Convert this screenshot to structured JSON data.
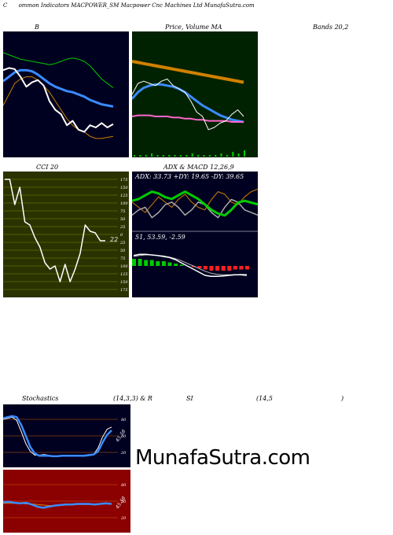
{
  "header": {
    "title_c": "C",
    "title_rest": "ommon  Indicators MACPOWER_SM Macpower Cnc Machines Ltd MunafaSutra.com"
  },
  "labels": {
    "b": "B",
    "price_volume": "Price,  Volume  MA",
    "bands": "Bands 20,2",
    "cci": "CCI 20",
    "adx_macd": "ADX  & MACD 12,26,9",
    "adx_values": "ADX: 33.73  +DY: 19.65 -DY: 39.65",
    "macd_values": "51,  53.59,  -2.59",
    "stochastics": "Stochastics",
    "stoch_params": "(14,3,3) & R",
    "rsi": "SI",
    "rsi_params": "(14,5",
    "rsi_close": ")",
    "stoch_marker": "45.58",
    "rsi_marker": "45.58",
    "cci_value": "22"
  },
  "watermark": "MunafaSutra.com",
  "colors": {
    "dark_bg": "#000020",
    "green_bg": "#002200",
    "olive_bg": "#2a3300",
    "red_bg": "#8b0000",
    "white": "#ffffff",
    "blue": "#3a8bff",
    "orange": "#d08000",
    "green": "#00cc00",
    "pink": "#ff66cc"
  },
  "chart_data": [
    {
      "type": "line",
      "title": "B",
      "series": [
        {
          "name": "close",
          "values": [
            72,
            74,
            73,
            66,
            57,
            61,
            63,
            58,
            44,
            36,
            32,
            22,
            26,
            18,
            16,
            22,
            20,
            24,
            20,
            23
          ]
        },
        {
          "name": "mid",
          "values": [
            62,
            66,
            70,
            72,
            72,
            71,
            68,
            64,
            60,
            57,
            55,
            53,
            52,
            50,
            48,
            45,
            43,
            41,
            40,
            39
          ]
        },
        {
          "name": "upper",
          "values": [
            88,
            86,
            84,
            82,
            81,
            80,
            79,
            78,
            77,
            78,
            80,
            82,
            83,
            82,
            80,
            76,
            70,
            64,
            60,
            56
          ]
        },
        {
          "name": "lower",
          "values": [
            40,
            50,
            60,
            64,
            66,
            66,
            63,
            58,
            52,
            44,
            36,
            28,
            22,
            18,
            16,
            12,
            10,
            10,
            11,
            12
          ]
        }
      ],
      "ylim": [
        0,
        100
      ]
    },
    {
      "type": "line",
      "title": "Price,  Volume  MA",
      "series": [
        {
          "name": "ma_long",
          "values": [
            80,
            79,
            78,
            77,
            76,
            75,
            74,
            73,
            72,
            71,
            70,
            69,
            68,
            67,
            66,
            65,
            64,
            63,
            62,
            61
          ]
        },
        {
          "name": "ma_mid",
          "values": [
            46,
            52,
            56,
            58,
            59,
            59,
            58,
            57,
            55,
            52,
            48,
            44,
            40,
            37,
            34,
            31,
            29,
            27,
            26,
            25
          ]
        },
        {
          "name": "ma_short",
          "values": [
            30,
            31,
            31,
            31,
            30,
            30,
            30,
            29,
            29,
            28,
            28,
            27,
            27,
            26,
            26,
            26,
            26,
            25,
            25,
            25
          ]
        },
        {
          "name": "price",
          "values": [
            50,
            60,
            62,
            60,
            58,
            62,
            64,
            58,
            55,
            52,
            44,
            34,
            30,
            18,
            20,
            24,
            26,
            32,
            36,
            30
          ]
        }
      ],
      "volume": [
        1,
        1,
        1,
        2,
        1,
        1,
        1,
        1,
        1,
        1,
        2,
        1,
        1,
        1,
        1,
        2,
        1,
        3,
        2,
        4
      ],
      "ylim": [
        0,
        100
      ]
    },
    {
      "type": "line",
      "title": "CCI 20",
      "series": [
        {
          "name": "cci",
          "values": [
            175,
            175,
            95,
            150,
            40,
            30,
            -10,
            -40,
            -90,
            -110,
            -100,
            -150,
            -95,
            -150,
            -110,
            -60,
            30,
            10,
            5,
            -20,
            -20
          ]
        }
      ],
      "ticks": [
        175,
        150,
        125,
        100,
        75,
        50,
        25,
        0,
        -25,
        -50,
        -75,
        -100,
        -125,
        -150,
        -175
      ],
      "tick_labels": [
        "175",
        "150",
        "125",
        "100",
        "75",
        "50",
        "25",
        "0",
        "25",
        "50",
        "75",
        "100",
        "125",
        "150",
        "175"
      ],
      "ylim": [
        -175,
        175
      ]
    },
    {
      "type": "line",
      "title": "ADX  & MACD 12,26,9",
      "series": [
        {
          "name": "adx",
          "values": [
            35,
            36,
            38,
            40,
            39,
            37,
            36,
            38,
            40,
            38,
            36,
            33,
            30,
            28,
            27,
            30,
            34,
            35,
            34,
            33
          ]
        },
        {
          "name": "plus_dy",
          "values": [
            20,
            24,
            26,
            18,
            22,
            28,
            30,
            26,
            20,
            24,
            30,
            28,
            22,
            18,
            26,
            32,
            30,
            24,
            22,
            20
          ]
        },
        {
          "name": "minus_dy",
          "values": [
            30,
            26,
            22,
            28,
            34,
            30,
            26,
            32,
            36,
            30,
            26,
            24,
            32,
            38,
            36,
            30,
            28,
            34,
            38,
            40
          ]
        }
      ]
    },
    {
      "type": "area",
      "title": "MACD",
      "series": [
        {
          "name": "macd",
          "values": [
            70,
            72,
            72,
            71,
            70,
            68,
            66,
            62,
            56,
            50,
            44,
            38,
            32,
            30,
            30,
            31,
            32,
            33,
            33,
            32
          ]
        },
        {
          "name": "signal",
          "values": [
            68,
            70,
            71,
            71,
            70,
            69,
            67,
            64,
            60,
            55,
            50,
            45,
            40,
            36,
            34,
            33,
            33,
            33,
            34,
            34
          ]
        },
        {
          "name": "histogram",
          "values": [
            6,
            6,
            5,
            5,
            4,
            4,
            3,
            2,
            1,
            0,
            -1,
            -2,
            -3,
            -4,
            -4,
            -4,
            -4,
            -3,
            -3,
            -3
          ]
        }
      ]
    },
    {
      "type": "line",
      "title": "Stochastics (14,3,3)",
      "series": [
        {
          "name": "k",
          "values": [
            80,
            82,
            84,
            78,
            58,
            36,
            22,
            15,
            15,
            16,
            15,
            13,
            13,
            14,
            14,
            15,
            13,
            14,
            15,
            16,
            16,
            28,
            48,
            62,
            66
          ]
        },
        {
          "name": "d",
          "values": [
            82,
            84,
            86,
            84,
            70,
            50,
            30,
            18,
            14,
            14,
            14,
            13,
            13,
            14,
            14,
            14,
            14,
            14,
            14,
            15,
            16,
            22,
            38,
            52,
            60
          ]
        }
      ],
      "ticks": [
        80,
        50,
        20
      ],
      "ylim": [
        0,
        100
      ]
    },
    {
      "type": "line",
      "title": "RSI (14,5)",
      "series": [
        {
          "name": "rsi",
          "values": [
            48,
            49,
            47,
            46,
            47,
            44,
            40,
            38,
            40,
            42,
            43,
            44,
            44,
            45,
            45,
            45,
            44,
            45,
            46,
            45
          ]
        },
        {
          "name": "rsi_ma",
          "values": [
            46,
            46,
            46,
            46,
            45,
            45,
            44,
            43,
            42,
            42,
            42,
            43,
            43,
            44,
            44,
            44,
            44,
            45,
            45,
            45
          ]
        }
      ],
      "ticks": [
        80,
        50,
        20
      ],
      "ylim": [
        0,
        100
      ]
    }
  ]
}
